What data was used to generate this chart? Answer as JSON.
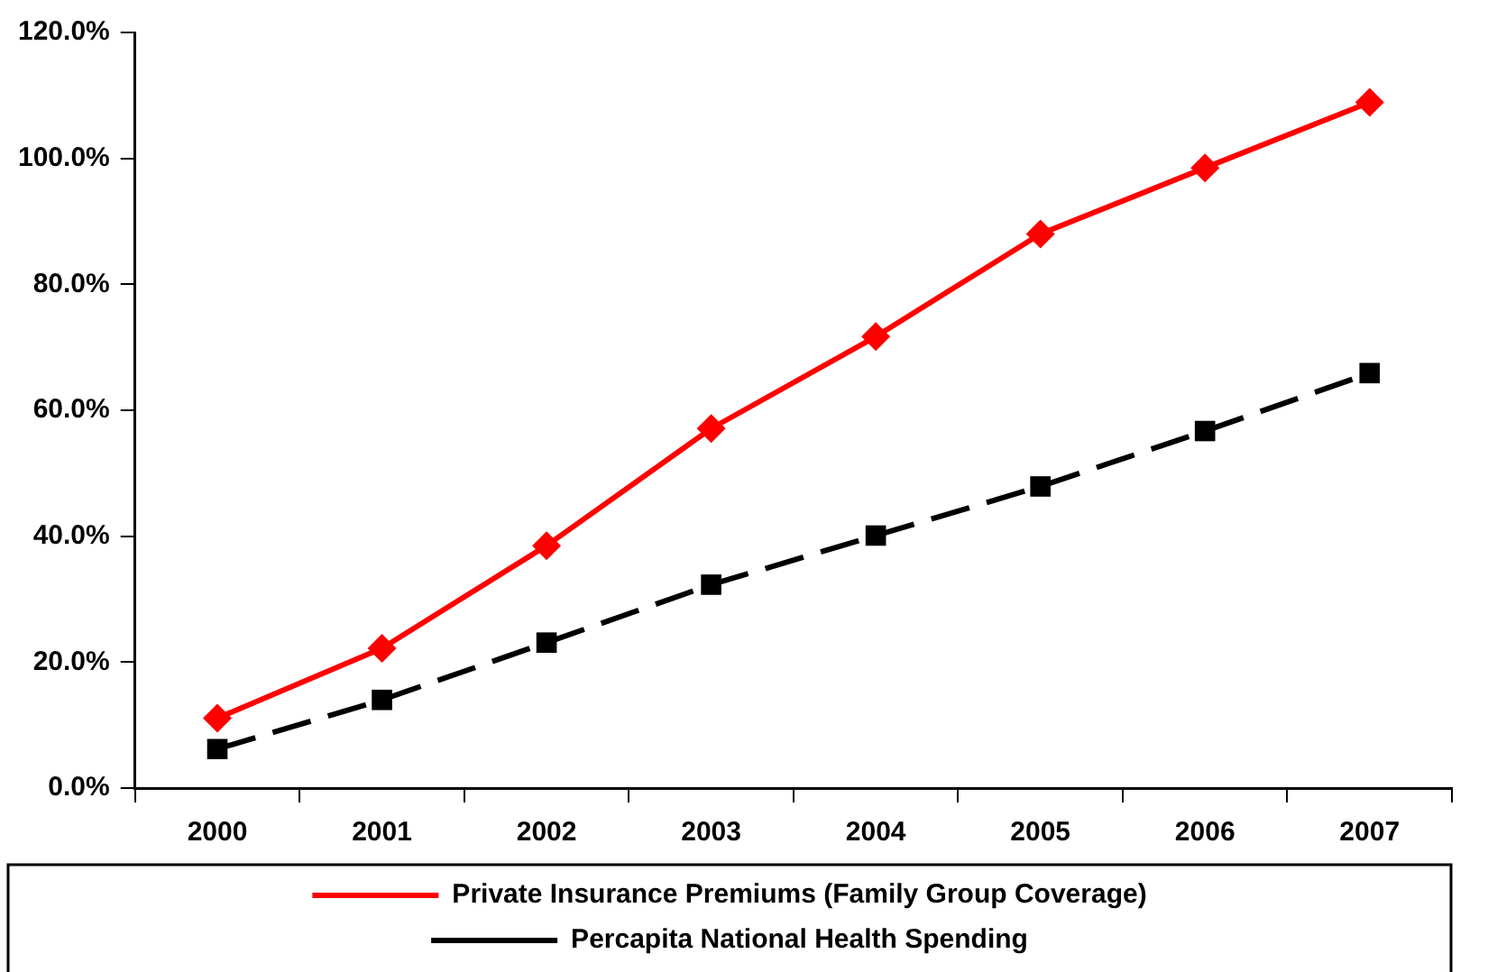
{
  "chart_data": {
    "type": "line",
    "categories": [
      "2000",
      "2001",
      "2002",
      "2003",
      "2004",
      "2005",
      "2006",
      "2007"
    ],
    "series": [
      {
        "name": "Private Insurance Premiums (Family Group Coverage)",
        "color": "#ff0000",
        "values": [
          11.1,
          22.2,
          38.5,
          57.1,
          71.7,
          88.0,
          98.5,
          108.9
        ],
        "marker": "diamond",
        "line_style": "solid"
      },
      {
        "name": "Percapita National Health Spending",
        "color": "#000000",
        "values": [
          6.2,
          14.0,
          23.1,
          32.3,
          40.1,
          47.9,
          56.7,
          65.9
        ],
        "marker": "square",
        "line_style": "dashed"
      }
    ],
    "ylim": [
      0,
      120
    ],
    "yticks": [
      {
        "value": 0,
        "label": "0.0%"
      },
      {
        "value": 20,
        "label": "20.0%"
      },
      {
        "value": 40,
        "label": "40.0%"
      },
      {
        "value": 60,
        "label": "60.0%"
      },
      {
        "value": 80,
        "label": "80.0%"
      },
      {
        "value": 100,
        "label": "100.0%"
      },
      {
        "value": 120,
        "label": "120.0%"
      }
    ],
    "grid": false,
    "legend": "bottom"
  }
}
